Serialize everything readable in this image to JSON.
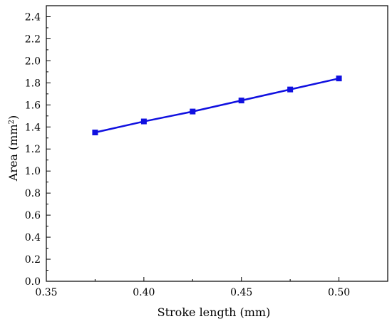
{
  "chart_data": {
    "type": "line",
    "title": "",
    "xlabel": "Stroke length (mm)",
    "ylabel": "Area (mm²)",
    "ylabel_parts": {
      "prefix": "Area (mm",
      "sup": "2",
      "suffix": ")"
    },
    "xlim": [
      0.35,
      0.525
    ],
    "ylim": [
      0.0,
      2.5
    ],
    "x_ticks": [
      0.35,
      0.4,
      0.45,
      0.5
    ],
    "x_tick_labels": [
      "0.35",
      "0.40",
      "0.45",
      "0.50"
    ],
    "x_minor_ticks": [
      0.375,
      0.425,
      0.475
    ],
    "y_ticks": [
      0.0,
      0.2,
      0.4,
      0.6,
      0.8,
      1.0,
      1.2,
      1.4,
      1.6,
      1.8,
      2.0,
      2.2,
      2.4
    ],
    "y_tick_labels": [
      "0.0",
      "0.2",
      "0.4",
      "0.6",
      "0.8",
      "1.0",
      "1.2",
      "1.4",
      "1.6",
      "1.8",
      "2.0",
      "2.2",
      "2.4"
    ],
    "grid": false,
    "legend": "none",
    "series": [
      {
        "color": "#1010e0",
        "marker": "square",
        "x": [
          0.375,
          0.4,
          0.425,
          0.45,
          0.475,
          0.5
        ],
        "y": [
          1.35,
          1.45,
          1.54,
          1.64,
          1.74,
          1.84
        ]
      }
    ]
  }
}
